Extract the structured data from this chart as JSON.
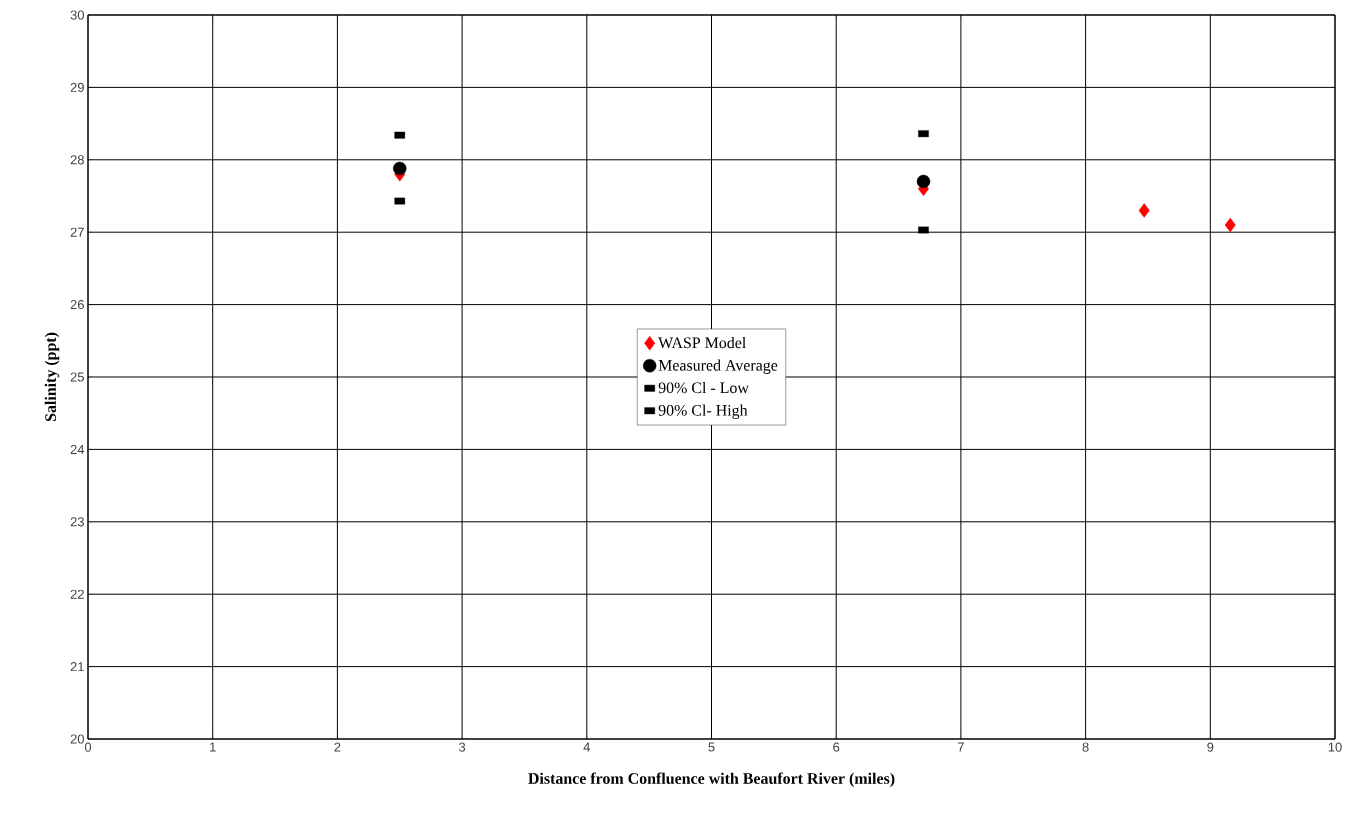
{
  "chart_data": {
    "type": "scatter",
    "xlabel": "Distance from Confluence with Beaufort River (miles)",
    "ylabel": "Salinity (ppt)",
    "xlim": [
      0,
      10
    ],
    "xticks": [
      0,
      1,
      2,
      3,
      4,
      5,
      6,
      7,
      8,
      9,
      10
    ],
    "ylim": [
      20,
      30
    ],
    "yticks": [
      20,
      21,
      22,
      23,
      24,
      25,
      26,
      27,
      28,
      29,
      30
    ],
    "grid": true,
    "legend": "center",
    "series": [
      {
        "name": "WASP Model",
        "color": "#ff0000",
        "marker": "diamond",
        "x": [
          2.5,
          6.7,
          8.47,
          9.16
        ],
        "values": [
          27.8,
          27.6,
          27.3,
          27.1
        ]
      },
      {
        "name": "Measured Average",
        "color": "#000000",
        "marker": "circle",
        "x": [
          2.5,
          6.7
        ],
        "values": [
          27.88,
          27.7
        ]
      },
      {
        "name": "90% Cl - Low",
        "color": "#000000",
        "marker": "square",
        "x": [
          2.5,
          6.7
        ],
        "values": [
          27.43,
          27.03
        ]
      },
      {
        "name": "90% Cl- High",
        "color": "#000000",
        "marker": "square",
        "x": [
          2.5,
          6.7
        ],
        "values": [
          28.34,
          28.36
        ]
      }
    ]
  }
}
